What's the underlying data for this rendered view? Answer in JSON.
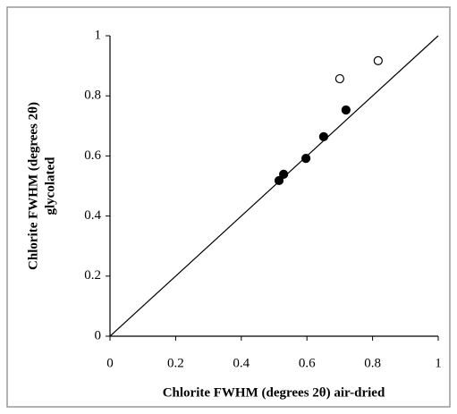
{
  "chart_data": {
    "type": "scatter",
    "xlabel": "Chlorite FWHM (degrees 2θ) air-dried",
    "ylabel": [
      "Chlorite FWHM (degrees 2θ)",
      "glycolated"
    ],
    "xlim": [
      0,
      1
    ],
    "ylim": [
      0,
      1
    ],
    "xticks": [
      0,
      0.2,
      0.4,
      0.6,
      0.8,
      1
    ],
    "yticks": [
      0,
      0.2,
      0.4,
      0.6,
      0.8,
      1
    ],
    "diagonal": true,
    "series": [
      {
        "marker": "filled",
        "color": "#000000",
        "x": [
          0.515,
          0.529,
          0.597,
          0.651,
          0.719
        ],
        "values": [
          0.518,
          0.539,
          0.592,
          0.664,
          0.753
        ]
      },
      {
        "marker": "open",
        "color": "#000000",
        "x": [
          0.7,
          0.817
        ],
        "values": [
          0.857,
          0.917
        ]
      }
    ]
  }
}
